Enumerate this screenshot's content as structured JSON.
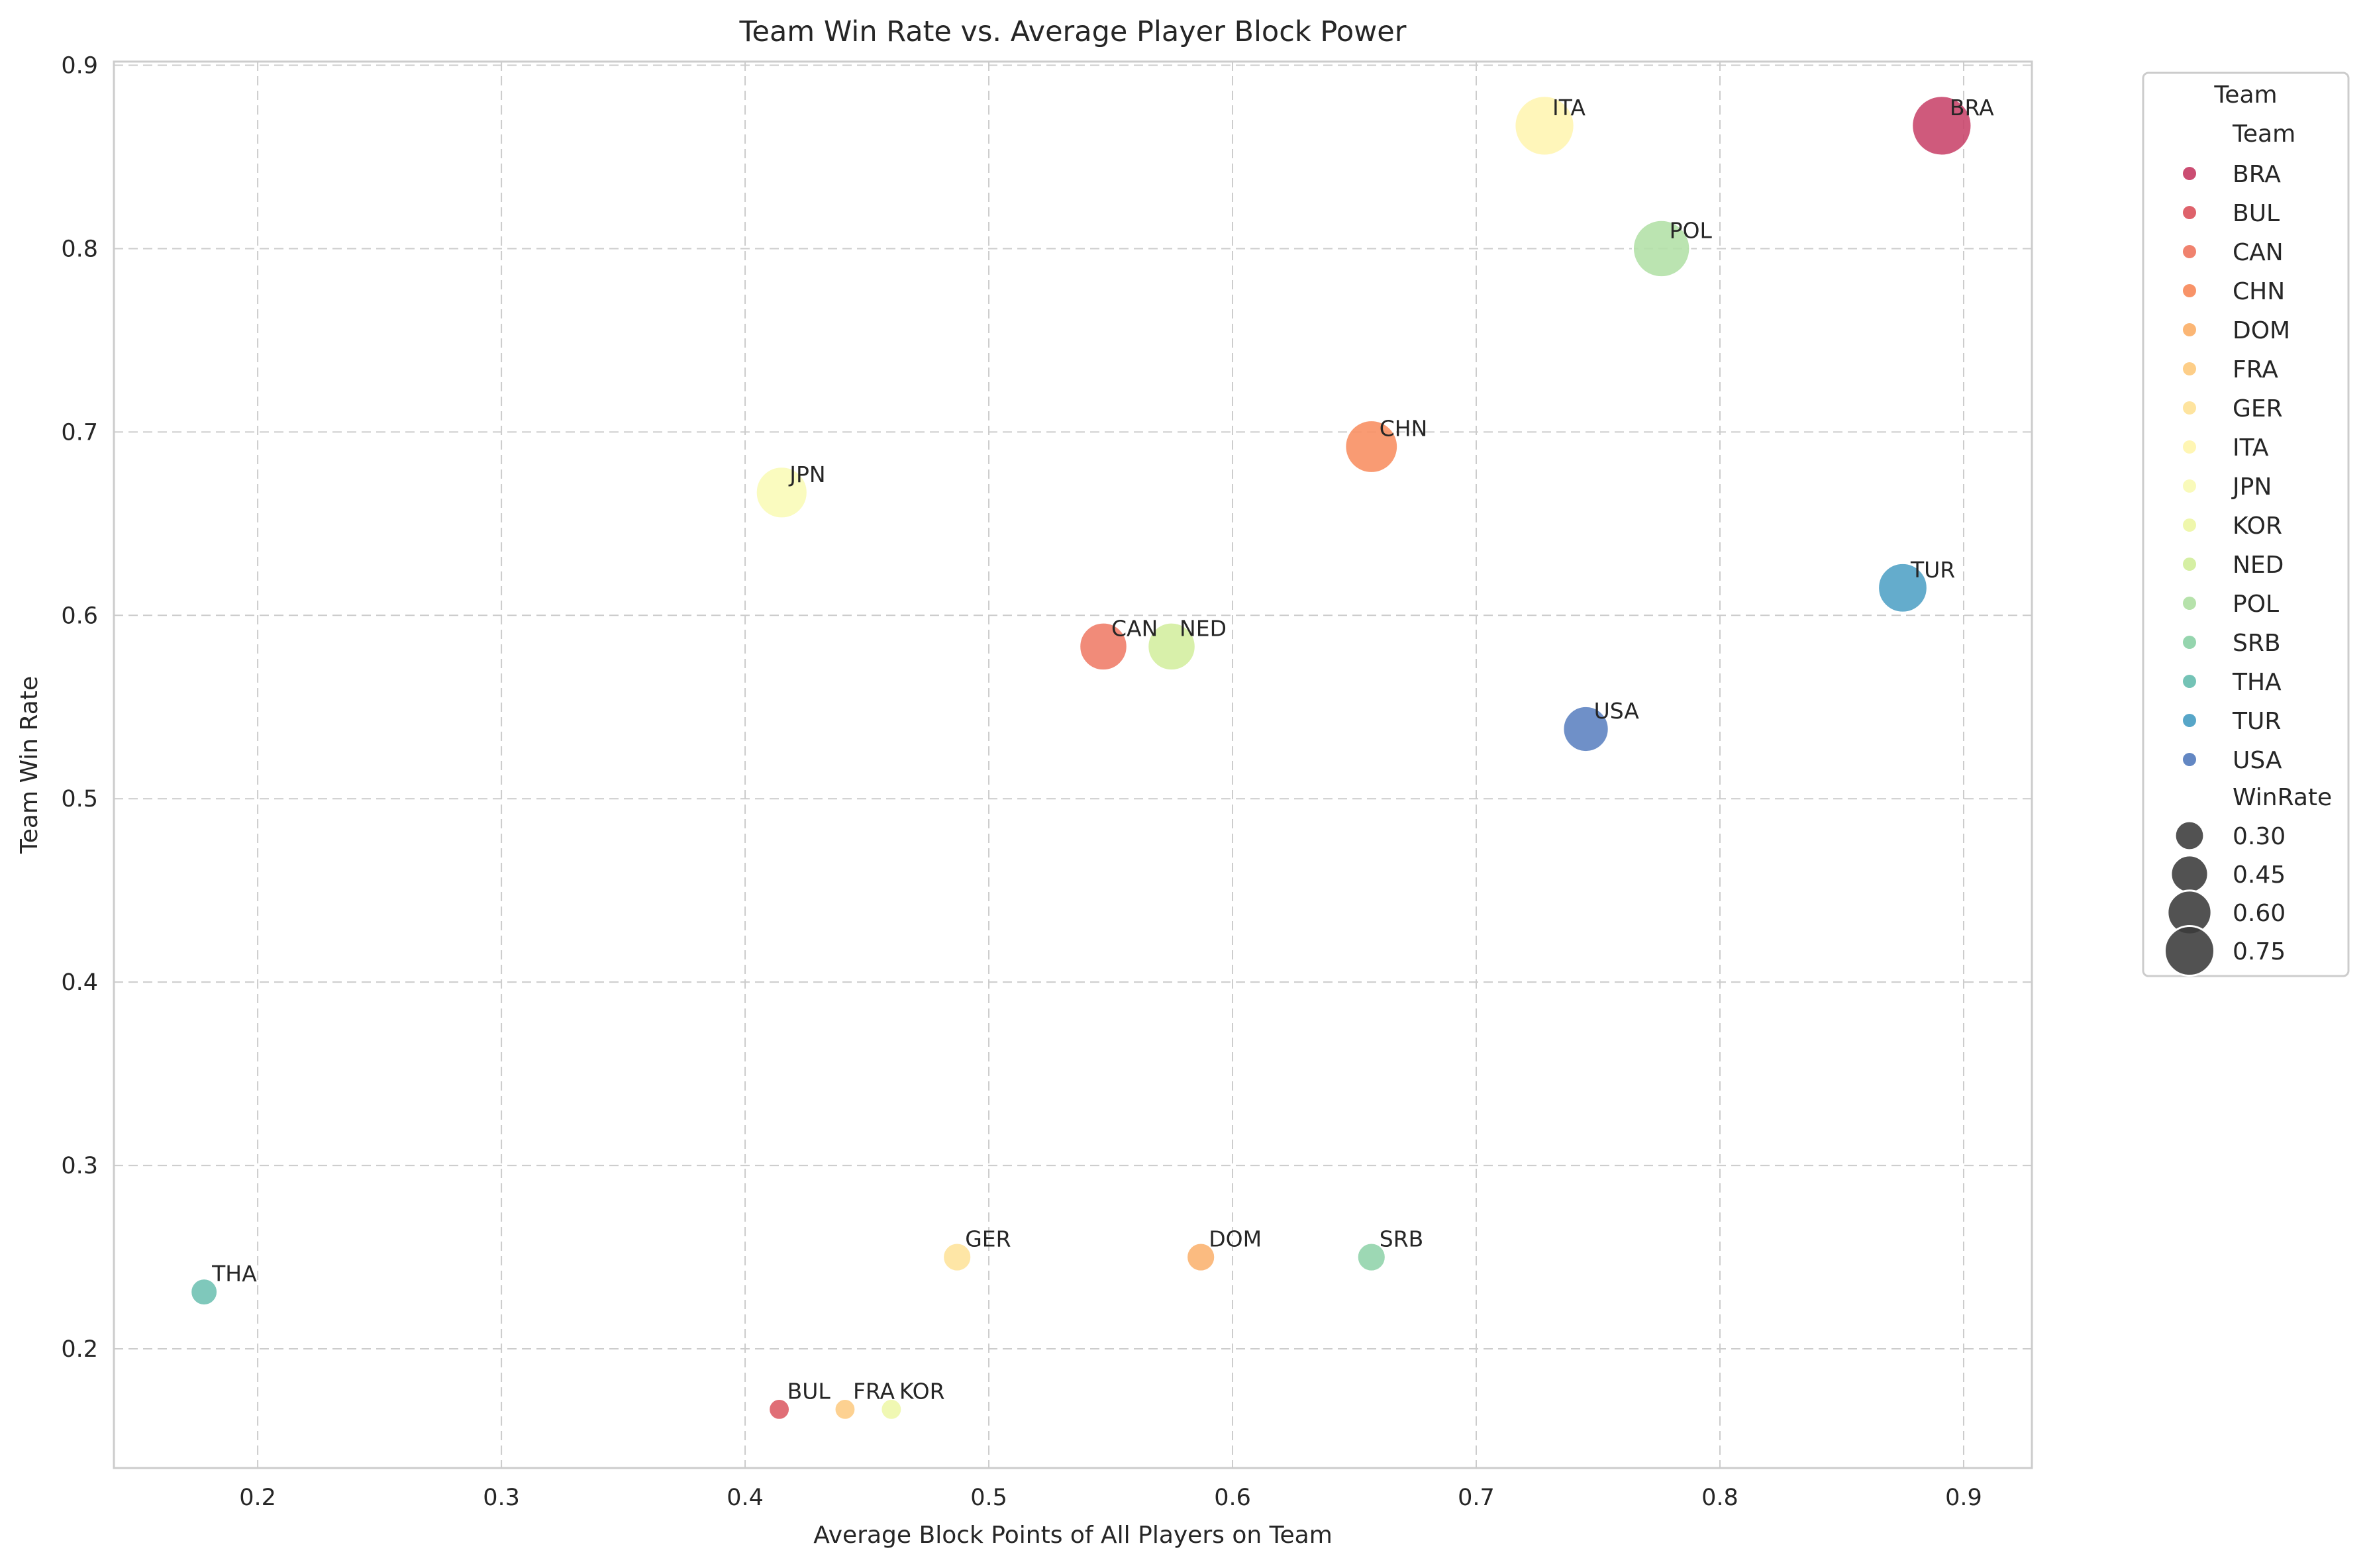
{
  "chart_data": {
    "type": "scatter",
    "title": "Team Win Rate vs. Average Player Block Power",
    "xlabel": "Average Block Points of All Players on Team",
    "ylabel": "Team Win Rate",
    "xlim": [
      0.141,
      0.928
    ],
    "ylim": [
      0.135,
      0.902
    ],
    "xticks": [
      "0.2",
      "0.3",
      "0.4",
      "0.5",
      "0.6",
      "0.7",
      "0.8",
      "0.9"
    ],
    "yticks": [
      "0.2",
      "0.3",
      "0.4",
      "0.5",
      "0.6",
      "0.7",
      "0.8",
      "0.9"
    ],
    "grid": true,
    "legend_position": "outside-right",
    "legend": {
      "title": "Team",
      "hue_title": "Team",
      "size_title": "WinRate",
      "size_entries": [
        "0.30",
        "0.45",
        "0.60",
        "0.75"
      ]
    },
    "points": [
      {
        "team": "BRA",
        "x": 0.891,
        "y": 0.867,
        "color": "#c8436a"
      },
      {
        "team": "BUL",
        "x": 0.414,
        "y": 0.167,
        "color": "#dc5a63"
      },
      {
        "team": "CAN",
        "x": 0.547,
        "y": 0.583,
        "color": "#ef7b66"
      },
      {
        "team": "CHN",
        "x": 0.657,
        "y": 0.692,
        "color": "#f88d60"
      },
      {
        "team": "DOM",
        "x": 0.587,
        "y": 0.25,
        "color": "#fbb26e"
      },
      {
        "team": "FRA",
        "x": 0.441,
        "y": 0.167,
        "color": "#fdcb82"
      },
      {
        "team": "GER",
        "x": 0.487,
        "y": 0.25,
        "color": "#fee39a"
      },
      {
        "team": "ITA",
        "x": 0.728,
        "y": 0.867,
        "color": "#fff5b0"
      },
      {
        "team": "JPN",
        "x": 0.415,
        "y": 0.667,
        "color": "#f9fab6"
      },
      {
        "team": "KOR",
        "x": 0.46,
        "y": 0.167,
        "color": "#eef7a8"
      },
      {
        "team": "NED",
        "x": 0.575,
        "y": 0.583,
        "color": "#d3ee9e"
      },
      {
        "team": "POL",
        "x": 0.776,
        "y": 0.8,
        "color": "#b2e0a6"
      },
      {
        "team": "SRB",
        "x": 0.657,
        "y": 0.25,
        "color": "#8fd3aa"
      },
      {
        "team": "THA",
        "x": 0.178,
        "y": 0.231,
        "color": "#6dc0b2"
      },
      {
        "team": "TUR",
        "x": 0.875,
        "y": 0.615,
        "color": "#4ea1c5"
      },
      {
        "team": "USA",
        "x": 0.745,
        "y": 0.538,
        "color": "#5b81c0"
      }
    ]
  }
}
